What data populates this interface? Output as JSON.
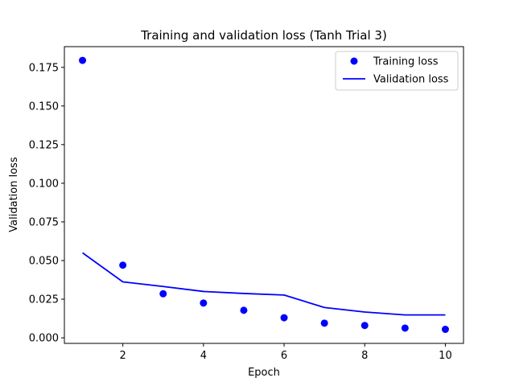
{
  "chart_data": {
    "type": "line",
    "title": "Training and validation loss (Tanh Trial 3)",
    "xlabel": "Epoch",
    "ylabel": "Validation loss",
    "x": [
      1,
      2,
      3,
      4,
      5,
      6,
      7,
      8,
      9,
      10
    ],
    "series": [
      {
        "name": "Training loss",
        "style": "points",
        "color": "#0000ff",
        "values": [
          0.1795,
          0.047,
          0.0285,
          0.0225,
          0.0178,
          0.013,
          0.0095,
          0.008,
          0.0063,
          0.0055
        ]
      },
      {
        "name": "Validation loss",
        "style": "line",
        "color": "#0000ff",
        "values": [
          0.055,
          0.0362,
          0.0332,
          0.03,
          0.0287,
          0.0277,
          0.0196,
          0.0167,
          0.0148,
          0.0148
        ]
      }
    ],
    "xlim": [
      0.55,
      10.45
    ],
    "ylim": [
      -0.0036,
      0.1884
    ],
    "xticks": [
      2,
      4,
      6,
      8,
      10
    ],
    "yticks": [
      0.0,
      0.025,
      0.05,
      0.075,
      0.1,
      0.125,
      0.15,
      0.175
    ],
    "xtick_labels": [
      "2",
      "4",
      "6",
      "8",
      "10"
    ],
    "ytick_labels": [
      "0.000",
      "0.025",
      "0.050",
      "0.075",
      "0.100",
      "0.125",
      "0.150",
      "0.175"
    ],
    "grid": false,
    "legend": "top-right"
  }
}
